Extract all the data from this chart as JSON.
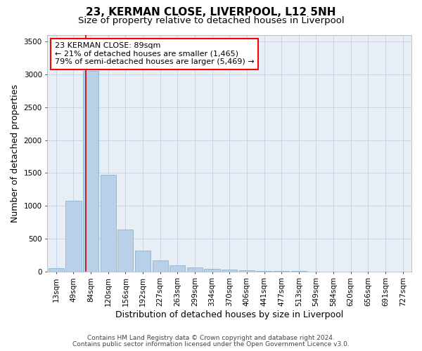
{
  "title": "23, KERMAN CLOSE, LIVERPOOL, L12 5NH",
  "subtitle": "Size of property relative to detached houses in Liverpool",
  "xlabel": "Distribution of detached houses by size in Liverpool",
  "ylabel": "Number of detached properties",
  "footnote1": "Contains HM Land Registry data © Crown copyright and database right 2024.",
  "footnote2": "Contains public sector information licensed under the Open Government Licence v3.0.",
  "bar_labels": [
    "13sqm",
    "49sqm",
    "84sqm",
    "120sqm",
    "156sqm",
    "192sqm",
    "227sqm",
    "263sqm",
    "299sqm",
    "334sqm",
    "370sqm",
    "406sqm",
    "441sqm",
    "477sqm",
    "513sqm",
    "549sqm",
    "584sqm",
    "620sqm",
    "656sqm",
    "691sqm",
    "727sqm"
  ],
  "bar_values": [
    50,
    1080,
    3050,
    1470,
    640,
    320,
    170,
    95,
    60,
    40,
    25,
    15,
    8,
    4,
    2,
    1,
    0,
    0,
    0,
    0,
    0
  ],
  "bar_color": "#b8d0e8",
  "bar_edge_color": "#8ab4d4",
  "grid_color": "#c8d4e4",
  "background_color": "#e8eef6",
  "vline_color": "#cc0000",
  "vline_position": 1.72,
  "ylim": [
    0,
    3600
  ],
  "yticks": [
    0,
    500,
    1000,
    1500,
    2000,
    2500,
    3000,
    3500
  ],
  "annotation_text": "23 KERMAN CLOSE: 89sqm\n← 21% of detached houses are smaller (1,465)\n79% of semi-detached houses are larger (5,469) →",
  "title_fontsize": 11,
  "subtitle_fontsize": 9.5,
  "xlabel_fontsize": 9,
  "ylabel_fontsize": 9,
  "tick_fontsize": 7.5,
  "annot_fontsize": 8,
  "footnote_fontsize": 6.5
}
